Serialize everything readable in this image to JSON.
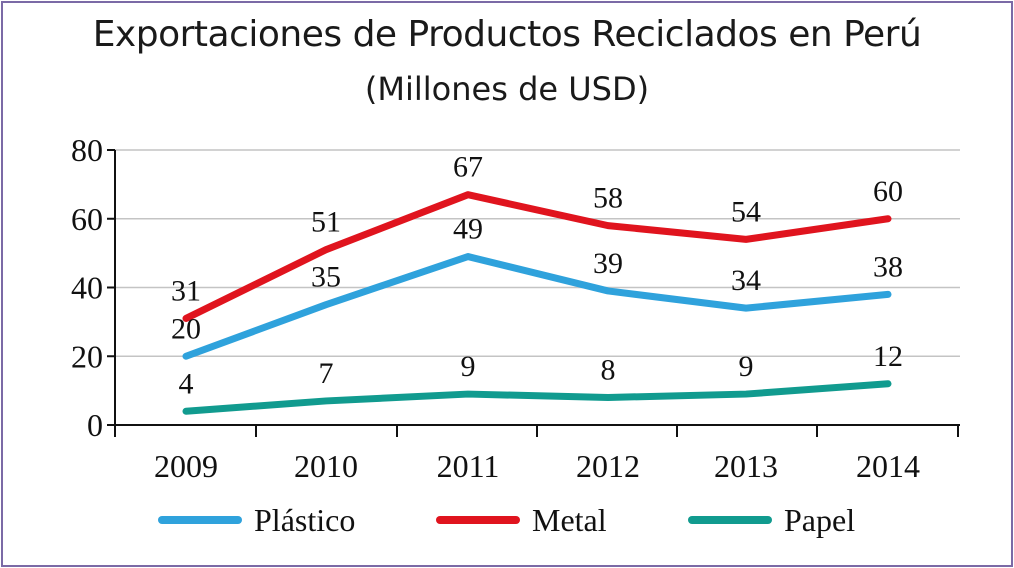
{
  "chart_data": {
    "type": "line",
    "title": "Exportaciones de Productos Reciclados en Perú",
    "subtitle": "(Millones de USD)",
    "categories": [
      "2009",
      "2010",
      "2011",
      "2012",
      "2013",
      "2014"
    ],
    "ylim": [
      0,
      80
    ],
    "yticks": [
      "0",
      "20",
      "40",
      "60",
      "80"
    ],
    "grid": true,
    "legend_position": "bottom",
    "series": [
      {
        "name": "Plástico",
        "color": "#2fa2dc",
        "values": [
          20,
          35,
          49,
          39,
          34,
          38
        ],
        "labels": [
          "20",
          "35",
          "49",
          "39",
          "34",
          "38"
        ]
      },
      {
        "name": "Metal",
        "color": "#e0141e",
        "values": [
          31,
          51,
          67,
          58,
          54,
          60
        ],
        "labels": [
          "31",
          "51",
          "67",
          "58",
          "54",
          "60"
        ]
      },
      {
        "name": "Papel",
        "color": "#119b8f",
        "values": [
          4,
          7,
          9,
          8,
          9,
          12
        ],
        "labels": [
          "4",
          "7",
          "9",
          "8",
          "9",
          "12"
        ]
      }
    ]
  }
}
